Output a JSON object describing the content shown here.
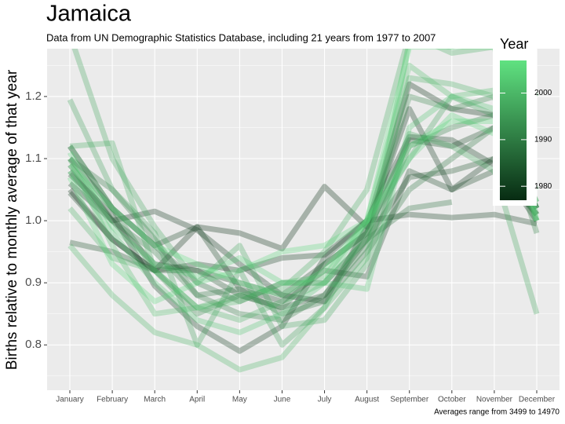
{
  "chart_data": {
    "type": "line",
    "title": "Jamaica",
    "subtitle": "Data from UN Demographic Statistics Database, including 21 years from 1977 to 2007",
    "y_label": "Births relative to monthly average of that year",
    "caption": "Averages range from 3499 to 14970",
    "categories": [
      "January",
      "February",
      "March",
      "April",
      "May",
      "June",
      "July",
      "August",
      "September",
      "October",
      "November",
      "December"
    ],
    "ylim": [
      0.727,
      1.277
    ],
    "yticks": [
      {
        "value": 0.8,
        "label": "0.8"
      },
      {
        "value": 0.9,
        "label": "0.9"
      },
      {
        "value": 1.0,
        "label": "1.0"
      },
      {
        "value": 1.1,
        "label": "1.1"
      },
      {
        "value": 1.2,
        "label": "1.2"
      }
    ],
    "grid": true,
    "minor_grid": true,
    "line_opacity": 0.3,
    "colorbar": {
      "title": "Year",
      "lim": [
        1977,
        2007
      ],
      "ticks": [
        1980,
        1990,
        2000
      ],
      "low": "#072b12",
      "high": "#60e281"
    },
    "series": [
      {
        "year": 1977,
        "values": [
          1.05,
          0.97,
          0.92,
          0.99,
          0.98,
          0.955,
          1.055,
          0.99,
          1.22,
          1.18,
          1.17,
          1.02
        ]
      },
      {
        "year": 1978,
        "values": [
          1.06,
          1.0,
          1.015,
          0.985,
          0.93,
          0.88,
          0.87,
          0.99,
          1.18,
          1.05,
          1.1,
          1.0
        ]
      },
      {
        "year": 1979,
        "values": [
          1.075,
          1.01,
          0.895,
          0.83,
          0.79,
          0.83,
          0.94,
          1.0,
          1.135,
          1.13,
          1.09,
          1.01
        ]
      },
      {
        "year": 1980,
        "values": [
          1.045,
          0.97,
          0.92,
          0.93,
          0.92,
          0.94,
          0.945,
          1.0,
          1.01,
          1.005,
          1.01,
          0.995
        ]
      },
      {
        "year": 1981,
        "values": [
          1.1,
          1.02,
          0.96,
          0.99,
          0.89,
          0.87,
          0.92,
          0.91,
          1.08,
          1.05,
          1.08,
          null
        ]
      },
      {
        "year": 1982,
        "values": [
          1.09,
          1.0,
          0.93,
          0.92,
          0.9,
          0.88,
          0.93,
          0.98,
          1.13,
          1.12,
          1.15,
          1.02
        ]
      },
      {
        "year": 1983,
        "values": [
          0.965,
          0.95,
          0.92,
          0.92,
          0.88,
          0.86,
          0.88,
          0.97,
          1.07,
          1.08,
          1.1,
          1.01
        ]
      },
      {
        "year": 1988,
        "values": [
          1.12,
          1.02,
          0.96,
          0.9,
          0.87,
          0.9,
          0.9,
          0.97,
          1.02,
          1.03,
          null,
          null
        ]
      },
      {
        "year": 1989,
        "values": [
          1.1,
          1.05,
          0.97,
          0.88,
          0.89,
          0.85,
          0.87,
          0.95,
          1.05,
          1.1,
          1.15,
          1.02
        ]
      },
      {
        "year": 1990,
        "values": [
          1.08,
          1.0,
          0.95,
          0.88,
          0.85,
          0.84,
          0.88,
          0.96,
          1.12,
          1.15,
          1.17,
          1.03
        ]
      },
      {
        "year": 1991,
        "values": [
          1.12,
          1.02,
          0.92,
          0.85,
          0.88,
          0.86,
          0.93,
          0.98,
          1.2,
          1.18,
          1.2,
          0.98
        ]
      },
      {
        "year": 1996,
        "values": [
          1.195,
          1.05,
          0.98,
          0.8,
          0.92,
          0.8,
          0.86,
          0.99,
          1.1,
          1.2,
          1.17,
          1.0
        ]
      },
      {
        "year": 1997,
        "values": [
          1.3,
          1.1,
          0.99,
          0.9,
          0.96,
          0.83,
          0.84,
          0.93,
          1.14,
          1.12,
          1.08,
          0.85
        ]
      },
      {
        "year": 1998,
        "values": [
          1.12,
          1.125,
          0.92,
          0.86,
          0.88,
          0.89,
          0.95,
          1.05,
          1.3,
          1.27,
          1.28,
          null
        ]
      },
      {
        "year": 1999,
        "values": [
          1.02,
          0.94,
          0.92,
          0.86,
          0.84,
          0.87,
          0.9,
          0.97,
          1.23,
          1.22,
          1.2,
          1.01
        ]
      },
      {
        "year": 2000,
        "values": [
          0.96,
          0.88,
          0.82,
          0.8,
          0.76,
          0.78,
          0.86,
          0.94,
          1.29,
          1.28,
          1.3,
          1.2
        ]
      },
      {
        "year": 2001,
        "values": [
          1.1,
          0.96,
          0.85,
          0.86,
          0.87,
          0.9,
          0.91,
          1.0,
          1.25,
          1.2,
          1.21,
          1.0
        ]
      },
      {
        "year": 2002,
        "values": [
          1.08,
          0.98,
          0.9,
          0.84,
          0.82,
          0.85,
          0.9,
          0.89,
          1.15,
          1.2,
          1.18,
          1.02
        ]
      },
      {
        "year": 2004,
        "values": [
          1.11,
          0.99,
          0.93,
          0.91,
          0.94,
          0.9,
          0.9,
          1.0,
          1.1,
          1.17,
          1.14,
          1.05
        ]
      },
      {
        "year": 2005,
        "values": [
          1.07,
          0.93,
          0.87,
          0.9,
          0.92,
          0.95,
          0.96,
          1.0,
          1.12,
          1.16,
          1.16,
          1.03
        ]
      },
      {
        "year": 2007,
        "values": [
          1.09,
          1.02,
          0.96,
          0.93,
          0.9,
          0.88,
          0.92,
          1.0,
          1.28,
          1.28,
          1.28,
          1.0
        ]
      }
    ]
  }
}
